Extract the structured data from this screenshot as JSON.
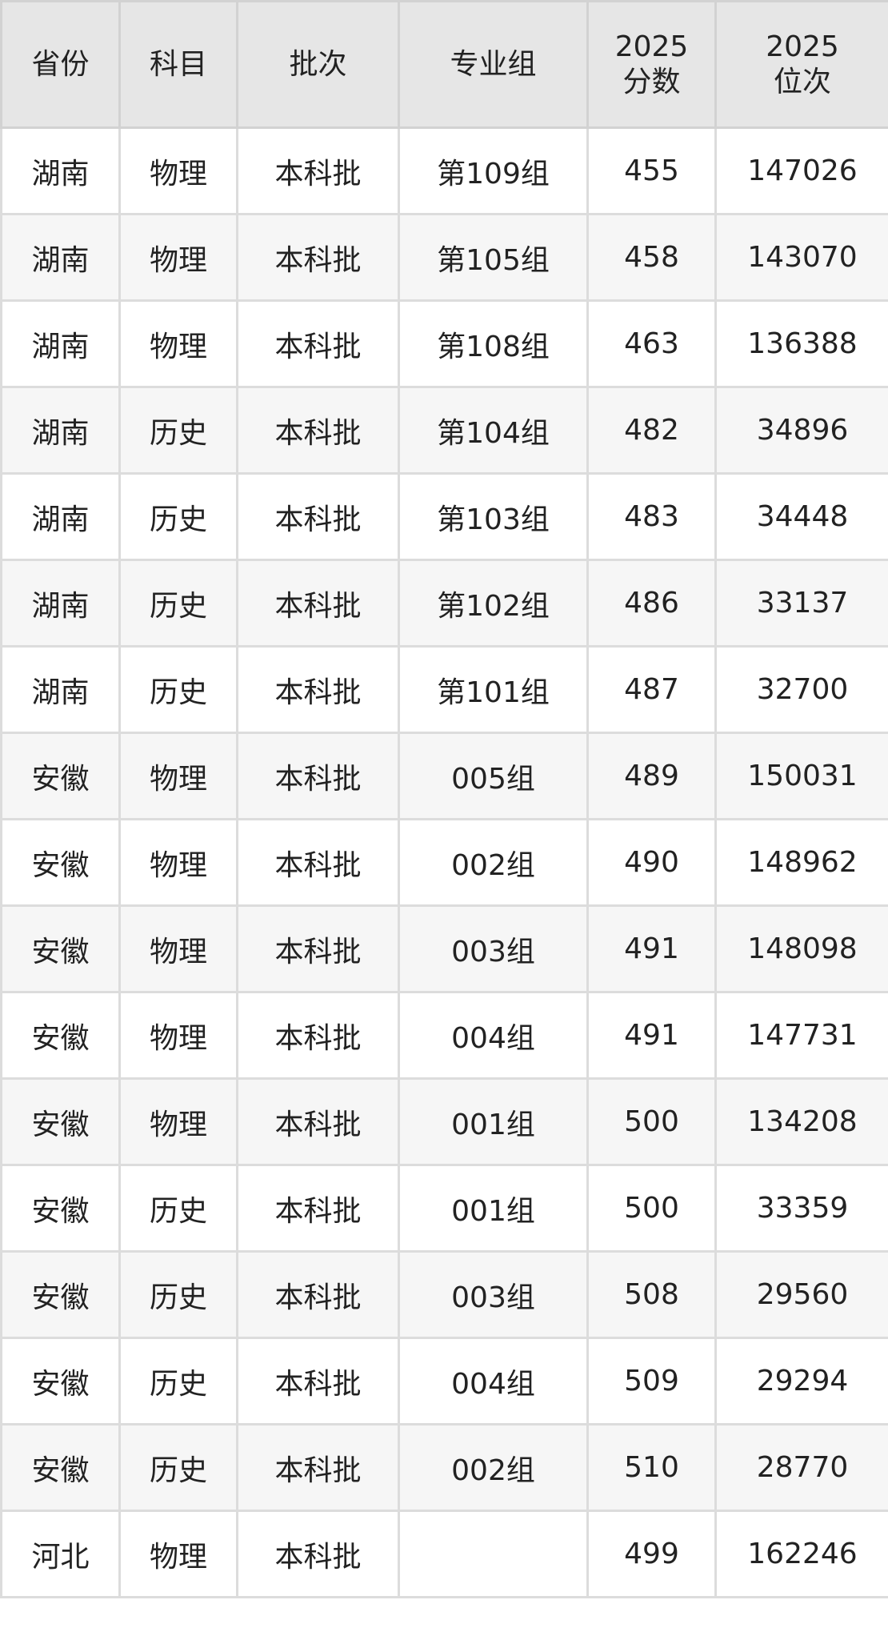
{
  "table": {
    "headers": [
      "省份",
      "科目",
      "批次",
      "专业组",
      "2025\n分数",
      "2025\n位次"
    ],
    "rows": [
      [
        "湖南",
        "物理",
        "本科批",
        "第109组",
        "455",
        "147026"
      ],
      [
        "湖南",
        "物理",
        "本科批",
        "第105组",
        "458",
        "143070"
      ],
      [
        "湖南",
        "物理",
        "本科批",
        "第108组",
        "463",
        "136388"
      ],
      [
        "湖南",
        "历史",
        "本科批",
        "第104组",
        "482",
        "34896"
      ],
      [
        "湖南",
        "历史",
        "本科批",
        "第103组",
        "483",
        "34448"
      ],
      [
        "湖南",
        "历史",
        "本科批",
        "第102组",
        "486",
        "33137"
      ],
      [
        "湖南",
        "历史",
        "本科批",
        "第101组",
        "487",
        "32700"
      ],
      [
        "安徽",
        "物理",
        "本科批",
        "005组",
        "489",
        "150031"
      ],
      [
        "安徽",
        "物理",
        "本科批",
        "002组",
        "490",
        "148962"
      ],
      [
        "安徽",
        "物理",
        "本科批",
        "003组",
        "491",
        "148098"
      ],
      [
        "安徽",
        "物理",
        "本科批",
        "004组",
        "491",
        "147731"
      ],
      [
        "安徽",
        "物理",
        "本科批",
        "001组",
        "500",
        "134208"
      ],
      [
        "安徽",
        "历史",
        "本科批",
        "001组",
        "500",
        "33359"
      ],
      [
        "安徽",
        "历史",
        "本科批",
        "003组",
        "508",
        "29560"
      ],
      [
        "安徽",
        "历史",
        "本科批",
        "004组",
        "509",
        "29294"
      ],
      [
        "安徽",
        "历史",
        "本科批",
        "002组",
        "510",
        "28770"
      ],
      [
        "河北",
        "物理",
        "本科批",
        "",
        "499",
        "162246"
      ]
    ]
  },
  "colors": {
    "header_bg": "#e6e6e6",
    "alt_row_bg": "#f6f6f6",
    "border": "#dcdcdc",
    "text": "#222222"
  }
}
